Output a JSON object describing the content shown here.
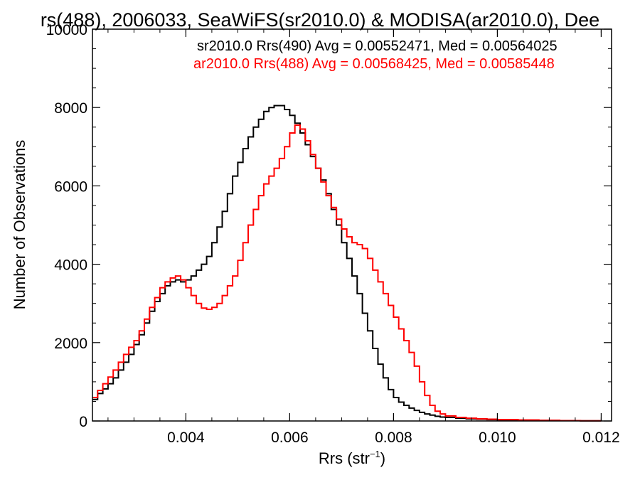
{
  "chart_data": {
    "type": "line",
    "step": true,
    "title": "rs(488), 2006033, SeaWiFS(sr2010.0) & MODISA(ar2010.0), Dee",
    "xlabel": "Rrs (str",
    "xlabel_superscript": "−1",
    "xlabel_close": ")",
    "ylabel": "Number of Observations",
    "xlim": [
      0.0022,
      0.0122
    ],
    "ylim": [
      0,
      10000
    ],
    "x_ticks": [
      {
        "value": 0.004,
        "label": "0.004"
      },
      {
        "value": 0.006,
        "label": "0.006"
      },
      {
        "value": 0.008,
        "label": "0.008"
      },
      {
        "value": 0.01,
        "label": "0.010"
      },
      {
        "value": 0.012,
        "label": "0.012"
      }
    ],
    "y_ticks": [
      {
        "value": 0,
        "label": "0"
      },
      {
        "value": 2000,
        "label": "2000"
      },
      {
        "value": 4000,
        "label": "4000"
      },
      {
        "value": 6000,
        "label": "6000"
      },
      {
        "value": 8000,
        "label": "8000"
      },
      {
        "value": 10000,
        "label": "10000"
      }
    ],
    "grid": false,
    "legend_position": "top-right",
    "series": [
      {
        "name": "sr2010.0 Rrs(490) Avg = 0.00552471, Med = 0.00564025",
        "color": "#000000",
        "points": [
          [
            0.0022,
            550
          ],
          [
            0.0023,
            700
          ],
          [
            0.0024,
            820
          ],
          [
            0.0025,
            950
          ],
          [
            0.0026,
            1100
          ],
          [
            0.0027,
            1300
          ],
          [
            0.0028,
            1500
          ],
          [
            0.0029,
            1700
          ],
          [
            0.003,
            1950
          ],
          [
            0.0031,
            2200
          ],
          [
            0.0032,
            2500
          ],
          [
            0.0033,
            2800
          ],
          [
            0.0034,
            3050
          ],
          [
            0.0035,
            3250
          ],
          [
            0.0036,
            3450
          ],
          [
            0.0037,
            3550
          ],
          [
            0.0038,
            3600
          ],
          [
            0.0039,
            3550
          ],
          [
            0.004,
            3600
          ],
          [
            0.0041,
            3700
          ],
          [
            0.0042,
            3850
          ],
          [
            0.0043,
            4000
          ],
          [
            0.0044,
            4200
          ],
          [
            0.0045,
            4550
          ],
          [
            0.0046,
            4950
          ],
          [
            0.0047,
            5350
          ],
          [
            0.0048,
            5800
          ],
          [
            0.0049,
            6250
          ],
          [
            0.005,
            6600
          ],
          [
            0.0051,
            6950
          ],
          [
            0.0052,
            7250
          ],
          [
            0.0053,
            7500
          ],
          [
            0.0054,
            7700
          ],
          [
            0.0055,
            7900
          ],
          [
            0.0056,
            8000
          ],
          [
            0.0057,
            8050
          ],
          [
            0.0058,
            8050
          ],
          [
            0.0059,
            7950
          ],
          [
            0.006,
            7800
          ],
          [
            0.0061,
            7600
          ],
          [
            0.0062,
            7350
          ],
          [
            0.0063,
            7050
          ],
          [
            0.0064,
            6750
          ],
          [
            0.0065,
            6450
          ],
          [
            0.0066,
            6150
          ],
          [
            0.0067,
            5800
          ],
          [
            0.0068,
            5400
          ],
          [
            0.0069,
            5000
          ],
          [
            0.007,
            4550
          ],
          [
            0.0071,
            4150
          ],
          [
            0.0072,
            3700
          ],
          [
            0.0073,
            3250
          ],
          [
            0.0074,
            2750
          ],
          [
            0.0075,
            2300
          ],
          [
            0.0076,
            1850
          ],
          [
            0.0077,
            1450
          ],
          [
            0.0078,
            1100
          ],
          [
            0.0079,
            800
          ],
          [
            0.008,
            600
          ],
          [
            0.0081,
            480
          ],
          [
            0.0082,
            400
          ],
          [
            0.0083,
            330
          ],
          [
            0.0084,
            270
          ],
          [
            0.0085,
            220
          ],
          [
            0.0086,
            180
          ],
          [
            0.0087,
            150
          ],
          [
            0.0088,
            120
          ],
          [
            0.0089,
            100
          ],
          [
            0.009,
            90
          ],
          [
            0.0092,
            70
          ],
          [
            0.0094,
            55
          ],
          [
            0.0096,
            45
          ],
          [
            0.0098,
            35
          ],
          [
            0.01,
            30
          ],
          [
            0.0104,
            20
          ],
          [
            0.0108,
            15
          ],
          [
            0.0112,
            10
          ],
          [
            0.0116,
            5
          ],
          [
            0.012,
            0
          ]
        ]
      },
      {
        "name": "ar2010.0 Rrs(488) Avg = 0.00568425, Med = 0.00585448",
        "color": "#ff0000",
        "points": [
          [
            0.0022,
            600
          ],
          [
            0.0023,
            780
          ],
          [
            0.0024,
            950
          ],
          [
            0.0025,
            1120
          ],
          [
            0.0026,
            1300
          ],
          [
            0.0027,
            1500
          ],
          [
            0.0028,
            1700
          ],
          [
            0.0029,
            1880
          ],
          [
            0.003,
            2050
          ],
          [
            0.0031,
            2300
          ],
          [
            0.0032,
            2600
          ],
          [
            0.0033,
            2900
          ],
          [
            0.0034,
            3150
          ],
          [
            0.0035,
            3400
          ],
          [
            0.0036,
            3550
          ],
          [
            0.0037,
            3650
          ],
          [
            0.0038,
            3700
          ],
          [
            0.0039,
            3600
          ],
          [
            0.004,
            3400
          ],
          [
            0.0041,
            3200
          ],
          [
            0.0042,
            3000
          ],
          [
            0.0043,
            2880
          ],
          [
            0.0044,
            2850
          ],
          [
            0.0045,
            2900
          ],
          [
            0.0046,
            3000
          ],
          [
            0.0047,
            3200
          ],
          [
            0.0048,
            3450
          ],
          [
            0.0049,
            3700
          ],
          [
            0.005,
            4100
          ],
          [
            0.0051,
            4550
          ],
          [
            0.0052,
            5000
          ],
          [
            0.0053,
            5400
          ],
          [
            0.0054,
            5750
          ],
          [
            0.0055,
            6050
          ],
          [
            0.0056,
            6250
          ],
          [
            0.0057,
            6450
          ],
          [
            0.0058,
            6700
          ],
          [
            0.0059,
            7000
          ],
          [
            0.006,
            7350
          ],
          [
            0.0061,
            7550
          ],
          [
            0.0062,
            7450
          ],
          [
            0.0063,
            7150
          ],
          [
            0.0064,
            6800
          ],
          [
            0.0065,
            6450
          ],
          [
            0.0066,
            6100
          ],
          [
            0.0067,
            5750
          ],
          [
            0.0068,
            5450
          ],
          [
            0.0069,
            5150
          ],
          [
            0.007,
            4900
          ],
          [
            0.0071,
            4700
          ],
          [
            0.0072,
            4550
          ],
          [
            0.0073,
            4500
          ],
          [
            0.0074,
            4400
          ],
          [
            0.0075,
            4150
          ],
          [
            0.0076,
            3850
          ],
          [
            0.0077,
            3550
          ],
          [
            0.0078,
            3250
          ],
          [
            0.0079,
            2950
          ],
          [
            0.008,
            2650
          ],
          [
            0.0081,
            2350
          ],
          [
            0.0082,
            2050
          ],
          [
            0.0083,
            1750
          ],
          [
            0.0084,
            1400
          ],
          [
            0.0085,
            1000
          ],
          [
            0.0086,
            650
          ],
          [
            0.0087,
            400
          ],
          [
            0.0088,
            250
          ],
          [
            0.0089,
            180
          ],
          [
            0.009,
            130
          ],
          [
            0.0092,
            90
          ],
          [
            0.0094,
            70
          ],
          [
            0.0096,
            55
          ],
          [
            0.0098,
            45
          ],
          [
            0.01,
            35
          ],
          [
            0.0104,
            25
          ],
          [
            0.0108,
            15
          ],
          [
            0.0112,
            10
          ],
          [
            0.0116,
            5
          ],
          [
            0.012,
            0
          ]
        ]
      }
    ]
  }
}
